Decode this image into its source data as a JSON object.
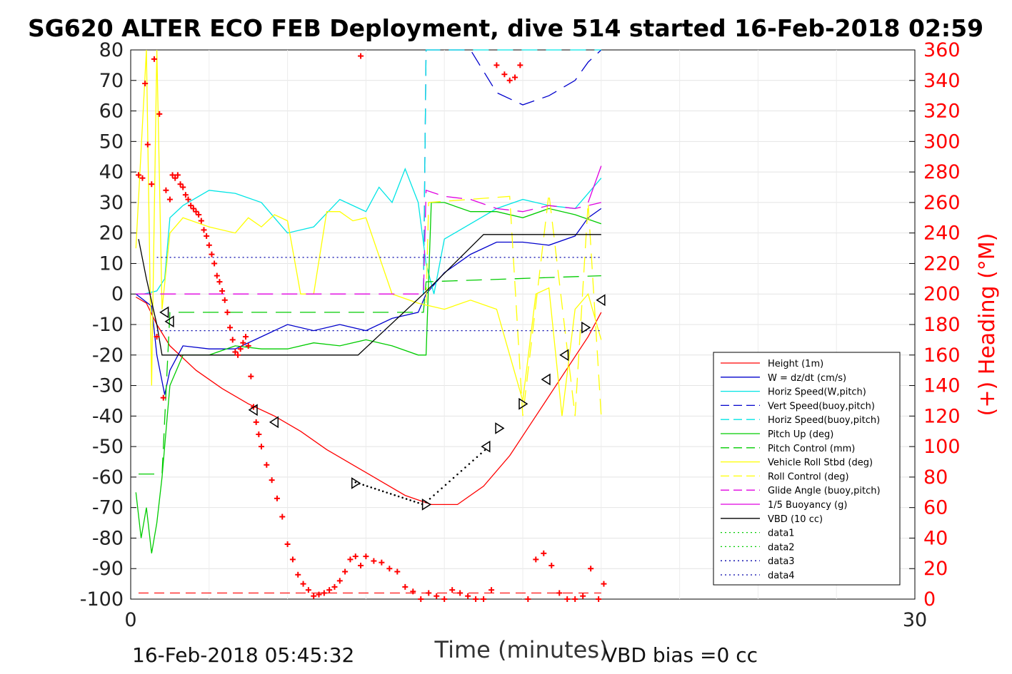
{
  "chart_data": {
    "type": "line",
    "title": "SG620 ALTER ECO FEB Deployment, dive 514 started 16-Feb-2018 02:59",
    "xlabel": "Time (minutes)",
    "ylabel_right": "(+) Heading (°M)",
    "xlim": [
      0,
      30
    ],
    "ylim": [
      -100,
      80
    ],
    "ylim_right": [
      0,
      360
    ],
    "x_ticks": [
      "0",
      "30"
    ],
    "y_ticks": [
      "80",
      "70",
      "60",
      "50",
      "40",
      "30",
      "20",
      "10",
      "0",
      "-10",
      "-20",
      "-30",
      "-40",
      "-50",
      "-60",
      "-70",
      "-80",
      "-90",
      "-100"
    ],
    "y_ticks_right": [
      "360",
      "340",
      "320",
      "300",
      "280",
      "260",
      "240",
      "220",
      "200",
      "180",
      "160",
      "140",
      "120",
      "100",
      "80",
      "60",
      "40",
      "20",
      "0"
    ],
    "grid": true,
    "legend_position": "bottom-right",
    "footer_left": "16-Feb-2018 05:45:32",
    "footer_right": "VBD bias =0 cc",
    "series": [
      {
        "name": "Height (1m)",
        "color": "#ff0000",
        "style": "solid",
        "x": [
          0.2,
          0.6,
          1.0,
          1.5,
          2.5,
          3.5,
          4.5,
          5.5,
          6.5,
          7.5,
          8.5,
          9.5,
          10.5,
          11.5,
          12.5,
          13.5,
          14.5,
          15.5,
          16.5,
          17.5,
          18.0
        ],
        "y": [
          -1,
          -3,
          -10,
          -17,
          -25,
          -31,
          -36,
          -40,
          -45,
          -51,
          -56,
          -61,
          -66,
          -69,
          -69,
          -63,
          -53,
          -40,
          -27,
          -14,
          -6
        ]
      },
      {
        "name": "W = dz/dt (cm/s)",
        "color": "#0000cc",
        "style": "solid",
        "x": [
          0.2,
          0.5,
          0.8,
          1.0,
          1.3,
          1.5,
          2.0,
          3.0,
          4.0,
          5.0,
          6.0,
          7.0,
          8.0,
          9.0,
          10.0,
          11.0,
          11.3,
          12.0,
          13.0,
          14.0,
          15.0,
          16.0,
          17.0,
          17.5,
          18.0
        ],
        "y": [
          0,
          -2,
          -4,
          -20,
          -33,
          -25,
          -17,
          -18,
          -18,
          -14,
          -10,
          -12,
          -10,
          -12,
          -8,
          -6,
          0,
          7,
          13,
          17,
          17,
          16,
          19,
          25,
          28
        ]
      },
      {
        "name": "Horiz Speed(W,pitch)",
        "color": "#00e5e5",
        "style": "solid",
        "x": [
          0.5,
          1.0,
          1.3,
          1.5,
          2.0,
          3.0,
          4.0,
          5.0,
          6.0,
          7.0,
          8.0,
          9.0,
          9.5,
          10.0,
          10.5,
          11.0,
          11.3,
          11.6,
          12.0,
          13.0,
          14.0,
          15.0,
          16.0,
          17.0,
          17.5,
          18.0
        ],
        "y": [
          0,
          1,
          5,
          25,
          29,
          34,
          33,
          30,
          20,
          22,
          31,
          27,
          35,
          30,
          41,
          30,
          10,
          0,
          18,
          23,
          28,
          31,
          29,
          28,
          33,
          38
        ]
      },
      {
        "name": "Vert Speed(buoy,pitch)",
        "color": "#0000cc",
        "style": "dashed",
        "x": [
          11.2,
          11.3,
          11.4,
          13.0,
          14.0,
          15.0,
          16.0,
          17.0,
          17.5,
          18.0
        ],
        "y": [
          0,
          80,
          80,
          80,
          66,
          62,
          65,
          70,
          76,
          80
        ]
      },
      {
        "name": "Horiz Speed(buoy,pitch)",
        "color": "#00e5e5",
        "style": "dashed",
        "x": [
          11.2,
          11.3,
          11.4,
          18.0
        ],
        "y": [
          0,
          80,
          80,
          80
        ]
      },
      {
        "name": "Pitch Up (deg)",
        "color": "#00cc00",
        "style": "solid",
        "x": [
          0.2,
          0.4,
          0.6,
          0.8,
          1.0,
          1.2,
          1.5,
          2.0,
          3.0,
          4.0,
          5.0,
          6.0,
          7.0,
          8.0,
          9.0,
          10.0,
          11.0,
          11.3,
          11.5,
          12.0,
          13.0,
          14.0,
          15.0,
          16.0,
          17.0,
          18.0
        ],
        "y": [
          -65,
          -80,
          -70,
          -85,
          -75,
          -60,
          -30,
          -20,
          -20,
          -17,
          -18,
          -18,
          -16,
          -17,
          -15,
          -17,
          -20,
          -20,
          30,
          30,
          27,
          27,
          25,
          28,
          26,
          23
        ]
      },
      {
        "name": "Pitch Control (mm)",
        "color": "#00cc00",
        "style": "dashed",
        "x": [
          0.3,
          1.2,
          1.5,
          11.2,
          11.3,
          18.0
        ],
        "y": [
          -59,
          -59,
          -6,
          -6,
          4,
          6
        ]
      },
      {
        "name": "Vehicle Roll Stbd (deg)",
        "color": "#ffff00",
        "style": "solid",
        "x": [
          0.2,
          0.6,
          0.8,
          1.0,
          1.2,
          1.5,
          2.0,
          3.0,
          4.0,
          4.5,
          5.0,
          5.5,
          6.0,
          6.5,
          7.0,
          7.5,
          8.0,
          8.5,
          9.0,
          10.0,
          11.0,
          12.0,
          13.0,
          14.0,
          15.0,
          15.5,
          16.0,
          16.5,
          17.0,
          17.5,
          18.0
        ],
        "y": [
          15,
          80,
          -30,
          80,
          -5,
          20,
          25,
          22,
          20,
          25,
          22,
          26,
          24,
          0,
          0,
          27,
          27,
          24,
          25,
          0,
          -3,
          -5,
          -2,
          -5,
          -35,
          0,
          2,
          -40,
          -5,
          0,
          -15
        ]
      },
      {
        "name": "Roll Control (deg)",
        "color": "#ffff00",
        "style": "dashed",
        "x": [
          11.3,
          11.4,
          14.5,
          15.0,
          16.0,
          17.0,
          17.5,
          18.0
        ],
        "y": [
          -3,
          30,
          32,
          -40,
          33,
          -40,
          30,
          -40
        ]
      },
      {
        "name": "Glide Angle (buoy,pitch)",
        "color": "#e000e0",
        "style": "dashed",
        "x": [
          0.2,
          11.2,
          11.3,
          12.0,
          13.0,
          14.0,
          15.0,
          16.0,
          17.0,
          18.0
        ],
        "y": [
          0,
          0,
          34,
          32,
          31,
          28,
          27,
          29,
          28,
          30
        ]
      },
      {
        "name": "1/5 Buoyancy (g)",
        "color": "#e000e0",
        "style": "solid",
        "x": [
          17.5,
          18.0
        ],
        "y": [
          30,
          42
        ]
      },
      {
        "name": "VBD (10 cc)",
        "color": "#000000",
        "style": "solid",
        "x": [
          0.3,
          0.6,
          1.0,
          1.2,
          8.7,
          11.2,
          13.5,
          18.0
        ],
        "y": [
          18,
          5,
          -10,
          -20,
          -20,
          0,
          19.5,
          19.5
        ]
      },
      {
        "name": "data1",
        "color": "#00cc00",
        "style": "dotted",
        "x": [],
        "y": []
      },
      {
        "name": "data2",
        "color": "#00cc00",
        "style": "dotted",
        "x": [],
        "y": []
      },
      {
        "name": "data3",
        "color": "#0000aa",
        "style": "dotted",
        "x": [
          1.0,
          18.0
        ],
        "y": [
          12,
          12
        ]
      },
      {
        "name": "data4",
        "color": "#0000aa",
        "style": "dotted",
        "x": [
          1.0,
          18.0
        ],
        "y": [
          -12,
          -12
        ]
      }
    ],
    "heading_points": {
      "name": "(+) Heading (°M)",
      "color": "#ff0000",
      "marker": "+",
      "axis": "right",
      "x": [
        0.3,
        0.45,
        0.55,
        0.65,
        0.8,
        0.9,
        1.0,
        1.1,
        1.25,
        1.35,
        1.5,
        1.6,
        1.7,
        1.8,
        1.9,
        2.0,
        2.1,
        2.2,
        2.3,
        2.4,
        2.5,
        2.6,
        2.7,
        2.8,
        2.9,
        3.0,
        3.1,
        3.2,
        3.3,
        3.4,
        3.5,
        3.6,
        3.7,
        3.8,
        3.9,
        4.0,
        4.1,
        4.2,
        4.3,
        4.4,
        4.5,
        4.6,
        4.7,
        4.8,
        4.9,
        5.0,
        5.2,
        5.4,
        5.6,
        5.8,
        6.0,
        6.2,
        6.4,
        6.6,
        6.8,
        7.0,
        7.2,
        7.4,
        7.6,
        7.8,
        8.0,
        8.2,
        8.4,
        8.6,
        8.8,
        9.0,
        9.3,
        9.6,
        9.9,
        10.2,
        10.5,
        10.8,
        11.1,
        11.4,
        11.7,
        12.0,
        12.3,
        12.6,
        12.9,
        13.2,
        13.5,
        13.8,
        8.8,
        14.0,
        14.3,
        14.5,
        14.7,
        14.9,
        15.2,
        15.5,
        15.8,
        16.1,
        16.4,
        16.7,
        17.0,
        17.3,
        17.6,
        17.9,
        18.1
      ],
      "y": [
        278,
        276,
        338,
        298,
        272,
        354,
        172,
        318,
        132,
        268,
        262,
        278,
        276,
        278,
        272,
        270,
        265,
        262,
        258,
        256,
        254,
        252,
        248,
        242,
        238,
        232,
        226,
        220,
        212,
        208,
        202,
        196,
        188,
        178,
        170,
        162,
        160,
        164,
        168,
        172,
        166,
        146,
        126,
        116,
        108,
        100,
        88,
        78,
        66,
        54,
        36,
        26,
        16,
        10,
        6,
        2,
        3,
        4,
        6,
        8,
        12,
        18,
        26,
        28,
        22,
        28,
        25,
        24,
        20,
        18,
        8,
        5,
        0,
        4,
        2,
        0,
        6,
        4,
        2,
        0,
        0,
        6,
        356,
        350,
        344,
        340,
        342,
        350,
        0,
        26,
        30,
        22,
        4,
        0,
        0,
        2,
        20,
        0,
        10
      ]
    }
  },
  "legend": [
    "Height (1m)",
    "W = dz/dt (cm/s)",
    "Horiz Speed(W,pitch)",
    "Vert Speed(buoy,pitch)",
    "Horiz Speed(buoy,pitch)",
    "Pitch Up (deg)",
    "Pitch Control (mm)",
    "Vehicle Roll Stbd (deg)",
    "Roll Control (deg)",
    "Glide Angle (buoy,pitch)",
    "1/5 Buoyancy (g)",
    "VBD (10 cc)",
    "data1",
    "data2",
    "data3",
    "data4"
  ]
}
